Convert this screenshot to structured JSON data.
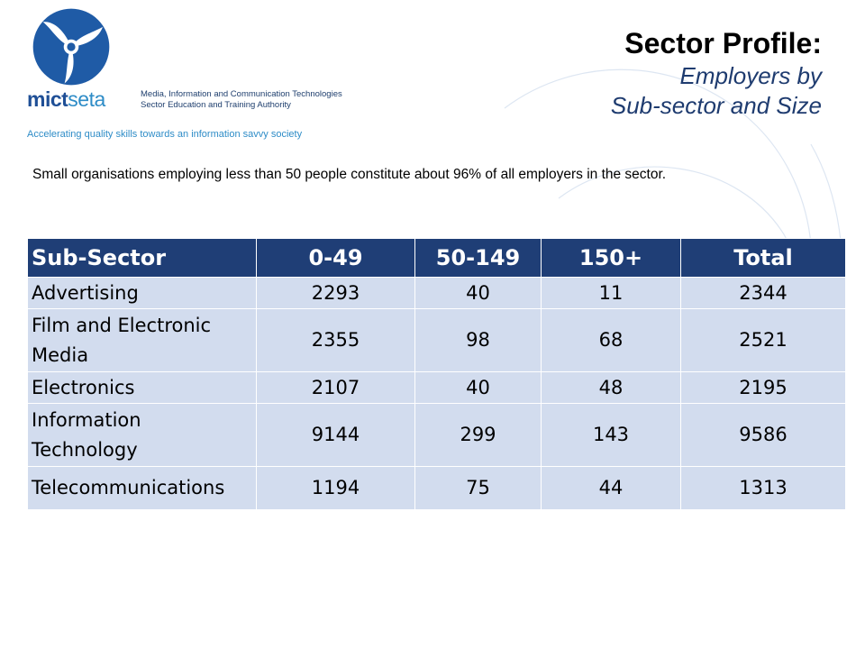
{
  "brand": {
    "wordmark_part1": "mict",
    "wordmark_part2": "seta",
    "description_line1": "Media, Information and Communication Technologies",
    "description_line2": "Sector Education and Training Authority",
    "tagline": "Accelerating quality skills towards an information savvy society",
    "colors": {
      "dark_blue": "#1f4f96",
      "light_blue": "#2e8cc7"
    }
  },
  "header": {
    "title": "Sector Profile:",
    "subtitle_line1": "Employers by",
    "subtitle_line2": "Sub-sector and Size"
  },
  "summary": "Small organisations employing less than 50 people constitute about 96% of all employers in the sector.",
  "table": {
    "columns": [
      "Sub-Sector",
      "0-49",
      "50-149",
      "150+",
      "Total"
    ],
    "rows": [
      {
        "label": "Advertising",
        "small": "2293",
        "medium": "40",
        "large": "11",
        "total": "2344"
      },
      {
        "label": "Film and Electronic Media",
        "small": "2355",
        "medium": "98",
        "large": "68",
        "total": "2521"
      },
      {
        "label": "Electronics",
        "small": "2107",
        "medium": "40",
        "large": "48",
        "total": "2195"
      },
      {
        "label": "Information Technology",
        "small": "9144",
        "medium": "299",
        "large": "143",
        "total": "9586"
      },
      {
        "label": "Telecommunications",
        "small": "1194",
        "medium": "75",
        "large": "44",
        "total": "1313"
      }
    ],
    "colors": {
      "header_bg": "#1f3e76",
      "row_bg": "#d2dcee"
    }
  }
}
